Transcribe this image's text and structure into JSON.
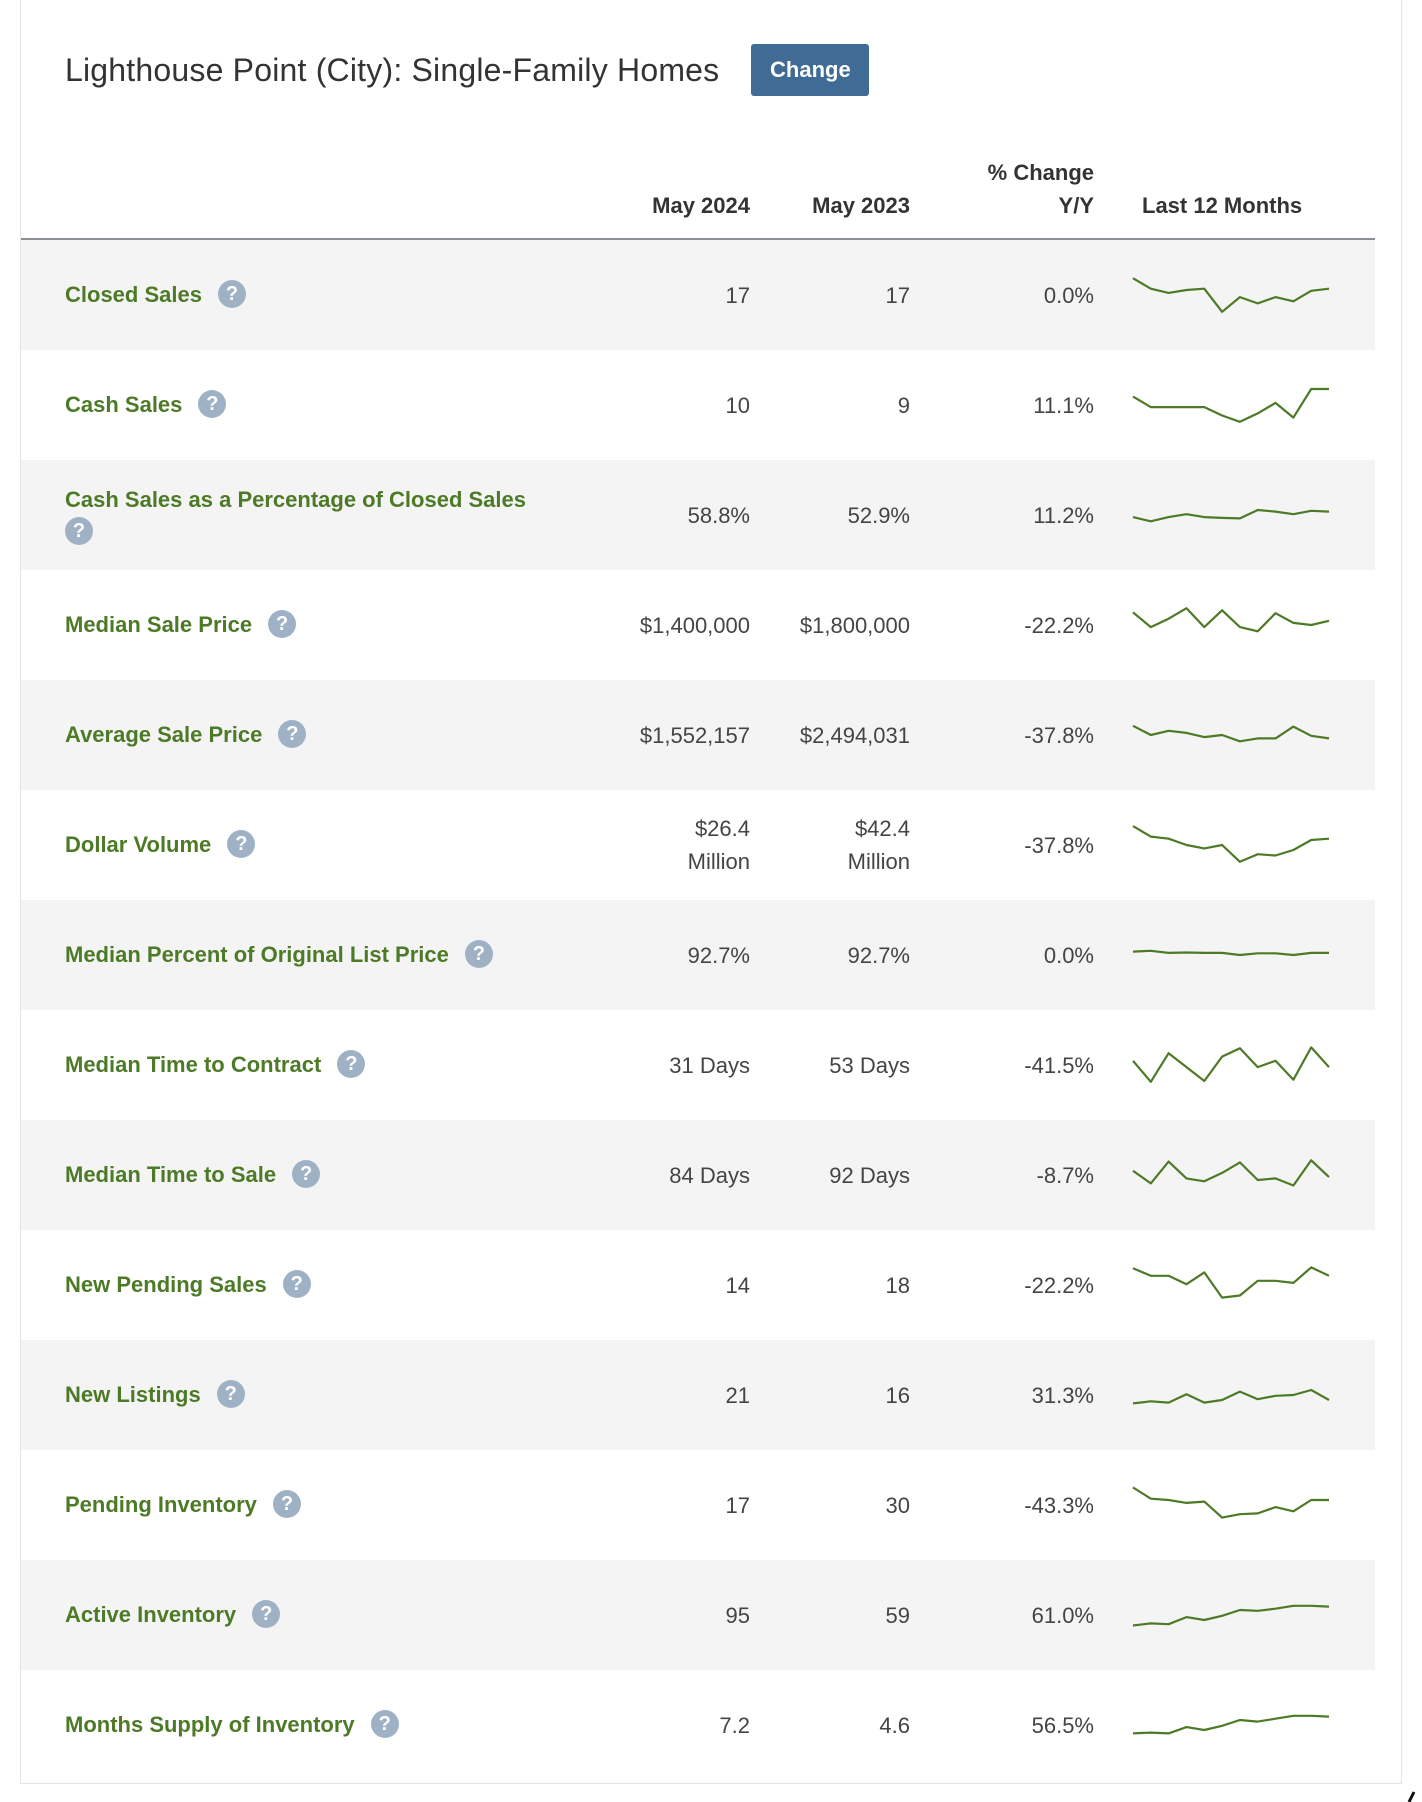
{
  "header": {
    "title": "Lighthouse Point (City): Single-Family Homes",
    "change_label": "Change"
  },
  "columns": {
    "current": "May 2024",
    "previous": "May 2023",
    "change_line1": "% Change",
    "change_line2": "Y/Y",
    "trend": "Last 12 Months"
  },
  "help_glyph": "?",
  "colors": {
    "metric_text": "#4d7a26",
    "sparkline": "#4d7a26",
    "button": "#3f6b94",
    "help_icon": "#9fb2c5",
    "row_shade": "#f4f4f4"
  },
  "rows": [
    {
      "metric": "Closed Sales",
      "current": "17",
      "previous": "17",
      "change": "0.0%",
      "trend": [
        0.9,
        0.65,
        0.55,
        0.62,
        0.65,
        0.1,
        0.45,
        0.3,
        0.45,
        0.35,
        0.6,
        0.65
      ]
    },
    {
      "metric": "Cash Sales",
      "current": "10",
      "previous": "9",
      "change": "11.1%",
      "trend": [
        0.7,
        0.45,
        0.45,
        0.45,
        0.45,
        0.25,
        0.1,
        0.3,
        0.55,
        0.2,
        0.88,
        0.88
      ]
    },
    {
      "metric": "Cash Sales as a Percentage of Closed Sales",
      "current": "58.8%",
      "previous": "52.9%",
      "change": "11.2%",
      "trend": [
        0.45,
        0.35,
        0.45,
        0.52,
        0.45,
        0.43,
        0.42,
        0.62,
        0.58,
        0.52,
        0.6,
        0.58
      ]
    },
    {
      "metric": "Median Sale Price",
      "current": "$1,400,000",
      "previous": "$1,800,000",
      "change": "-22.2%",
      "trend": [
        0.8,
        0.45,
        0.65,
        0.9,
        0.45,
        0.85,
        0.45,
        0.35,
        0.78,
        0.55,
        0.5,
        0.6
      ]
    },
    {
      "metric": "Average Sale Price",
      "current": "$1,552,157",
      "previous": "$2,494,031",
      "change": "-37.8%",
      "trend": [
        0.72,
        0.5,
        0.6,
        0.55,
        0.45,
        0.5,
        0.35,
        0.42,
        0.42,
        0.7,
        0.48,
        0.42
      ]
    },
    {
      "metric": "Dollar Volume",
      "current": "$26.4 Million",
      "previous": "$42.4 Million",
      "change": "-37.8%",
      "trend": [
        0.95,
        0.7,
        0.65,
        0.5,
        0.42,
        0.5,
        0.1,
        0.28,
        0.25,
        0.38,
        0.62,
        0.65
      ]
    },
    {
      "metric": "Median Percent of Original List Price",
      "current": "92.7%",
      "previous": "92.7%",
      "change": "0.0%",
      "trend": [
        0.58,
        0.6,
        0.55,
        0.56,
        0.55,
        0.55,
        0.5,
        0.54,
        0.54,
        0.5,
        0.55,
        0.55
      ]
    },
    {
      "metric": "Median Time to Contract",
      "current": "31 Days",
      "previous": "53 Days",
      "change": "-41.5%",
      "trend": [
        0.6,
        0.1,
        0.78,
        0.45,
        0.12,
        0.7,
        0.9,
        0.45,
        0.6,
        0.15,
        0.92,
        0.45
      ]
    },
    {
      "metric": "Median Time to Sale",
      "current": "84 Days",
      "previous": "92 Days",
      "change": "-8.7%",
      "trend": [
        0.6,
        0.3,
        0.82,
        0.42,
        0.35,
        0.55,
        0.8,
        0.38,
        0.42,
        0.25,
        0.85,
        0.45
      ]
    },
    {
      "metric": "New Pending Sales",
      "current": "14",
      "previous": "18",
      "change": "-22.2%",
      "trend": [
        0.9,
        0.72,
        0.72,
        0.52,
        0.8,
        0.2,
        0.25,
        0.6,
        0.6,
        0.55,
        0.92,
        0.72
      ]
    },
    {
      "metric": "New Listings",
      "current": "21",
      "previous": "16",
      "change": "31.3%",
      "trend": [
        0.3,
        0.35,
        0.32,
        0.52,
        0.32,
        0.38,
        0.58,
        0.4,
        0.48,
        0.5,
        0.62,
        0.38
      ]
    },
    {
      "metric": "Pending Inventory",
      "current": "17",
      "previous": "30",
      "change": "-43.3%",
      "trend": [
        0.92,
        0.65,
        0.62,
        0.55,
        0.58,
        0.2,
        0.28,
        0.3,
        0.45,
        0.35,
        0.62,
        0.62
      ]
    },
    {
      "metric": "Active Inventory",
      "current": "95",
      "previous": "59",
      "change": "61.0%",
      "trend": [
        0.25,
        0.3,
        0.28,
        0.45,
        0.38,
        0.48,
        0.62,
        0.6,
        0.65,
        0.72,
        0.72,
        0.7
      ]
    },
    {
      "metric": "Months Supply of Inventory",
      "current": "7.2",
      "previous": "4.6",
      "change": "56.5%",
      "trend": [
        0.3,
        0.32,
        0.3,
        0.45,
        0.38,
        0.48,
        0.62,
        0.58,
        0.65,
        0.72,
        0.72,
        0.7
      ]
    }
  ]
}
